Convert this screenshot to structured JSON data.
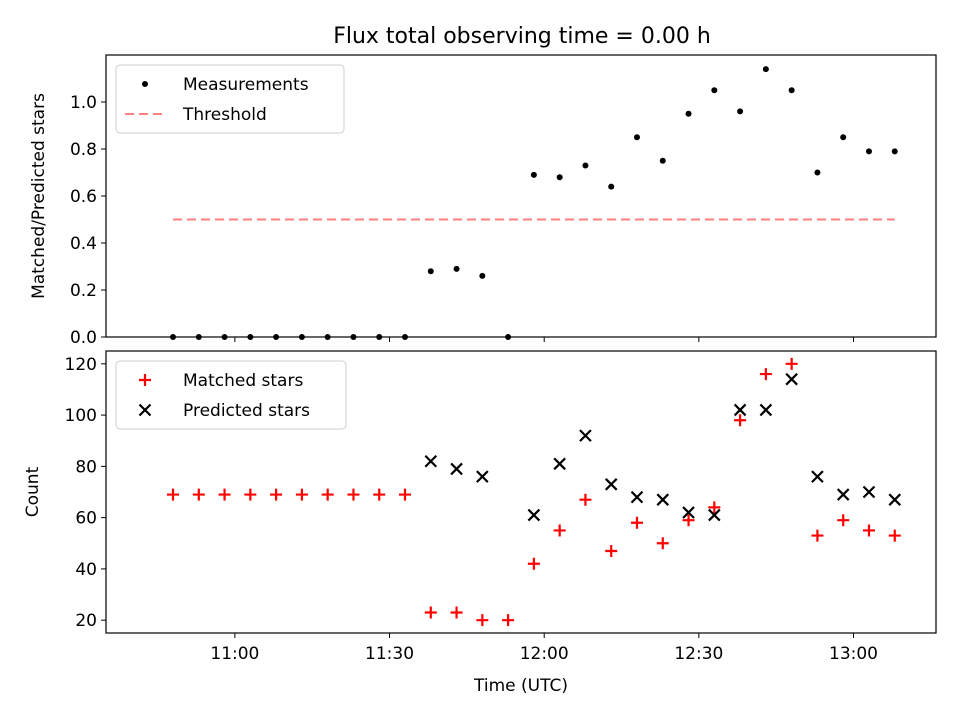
{
  "title": "Flux total observing time = 0.00 h",
  "chart_data": [
    {
      "type": "scatter",
      "xlabel": "",
      "ylabel": "Matched/Predicted stars",
      "ylim": [
        0,
        1.2
      ],
      "yticks": [
        0.0,
        0.2,
        0.4,
        0.6,
        0.8,
        1.0
      ],
      "ytick_labels": [
        "0.0",
        "0.2",
        "0.4",
        "0.6",
        "0.8",
        "1.0"
      ],
      "xticks_shown": false,
      "grid": false,
      "legend_position": "top-left",
      "series": [
        {
          "name": "Measurements",
          "marker": "dot",
          "color": "#000000",
          "x": [
            "10:48",
            "10:53",
            "10:58",
            "11:03",
            "11:08",
            "11:13",
            "11:18",
            "11:23",
            "11:28",
            "11:33",
            "11:38",
            "11:43",
            "11:48",
            "11:53",
            "11:58",
            "12:03",
            "12:08",
            "12:13",
            "12:18",
            "12:23",
            "12:28",
            "12:33",
            "12:38",
            "12:43",
            "12:48",
            "12:53",
            "12:58",
            "13:03",
            "13:08"
          ],
          "values": [
            0.0,
            0.0,
            0.0,
            0.0,
            0.0,
            0.0,
            0.0,
            0.0,
            0.0,
            0.0,
            0.28,
            0.29,
            0.26,
            0.0,
            0.69,
            0.68,
            0.73,
            0.64,
            0.85,
            0.75,
            0.95,
            1.05,
            0.96,
            1.14,
            1.05,
            0.7,
            0.85,
            0.79,
            0.79
          ]
        },
        {
          "name": "Threshold",
          "marker": "dashed-line",
          "color": "#ff7f7f",
          "x": [
            "10:48",
            "13:08"
          ],
          "values": [
            0.5,
            0.5
          ]
        }
      ]
    },
    {
      "type": "scatter",
      "xlabel": "Time (UTC)",
      "ylabel": "Count",
      "ylim": [
        15,
        125
      ],
      "yticks": [
        20,
        40,
        60,
        80,
        100,
        120
      ],
      "ytick_labels": [
        "20",
        "40",
        "60",
        "80",
        "100",
        "120"
      ],
      "xticks": [
        "11:00",
        "11:30",
        "12:00",
        "12:30",
        "13:00"
      ],
      "xtick_labels": [
        "11:00",
        "11:30",
        "12:00",
        "12:30",
        "13:00"
      ],
      "grid": false,
      "legend_position": "top-left",
      "series": [
        {
          "name": "Matched stars",
          "marker": "plus",
          "color": "#ff0000",
          "x": [
            "10:48",
            "10:53",
            "10:58",
            "11:03",
            "11:08",
            "11:13",
            "11:18",
            "11:23",
            "11:28",
            "11:33",
            "11:38",
            "11:43",
            "11:48",
            "11:53",
            "11:58",
            "12:03",
            "12:08",
            "12:13",
            "12:18",
            "12:23",
            "12:28",
            "12:33",
            "12:38",
            "12:43",
            "12:48",
            "12:53",
            "12:58",
            "13:03",
            "13:08"
          ],
          "values": [
            69,
            69,
            69,
            69,
            69,
            69,
            69,
            69,
            69,
            69,
            23,
            23,
            20,
            20,
            42,
            55,
            67,
            47,
            58,
            50,
            59,
            64,
            98,
            116,
            120,
            53,
            59,
            55,
            53
          ]
        },
        {
          "name": "Predicted stars",
          "marker": "x",
          "color": "#000000",
          "x": [
            "11:38",
            "11:43",
            "11:48",
            "11:58",
            "12:03",
            "12:08",
            "12:13",
            "12:18",
            "12:23",
            "12:28",
            "12:33",
            "12:38",
            "12:43",
            "12:48",
            "12:53",
            "12:58",
            "13:03",
            "13:08"
          ],
          "values": [
            82,
            79,
            76,
            61,
            81,
            92,
            73,
            68,
            67,
            62,
            61,
            102,
            102,
            114,
            76,
            69,
            70,
            67
          ]
        }
      ]
    }
  ]
}
